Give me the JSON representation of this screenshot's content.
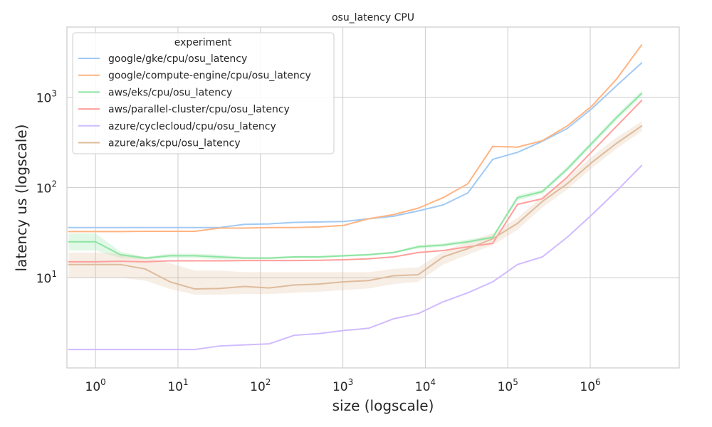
{
  "chart_data": {
    "type": "line",
    "title": "osu_latency CPU",
    "xlabel": "size (logscale)",
    "ylabel": "latency us (logscale)",
    "xscale": "log",
    "yscale": "log",
    "xlim": [
      0.45,
      12000000
    ],
    "ylim": [
      1.0,
      6000
    ],
    "grid": true,
    "x_ticks": [
      {
        "base": "10",
        "exp": "0",
        "value": 1
      },
      {
        "base": "10",
        "exp": "1",
        "value": 10
      },
      {
        "base": "10",
        "exp": "2",
        "value": 100
      },
      {
        "base": "10",
        "exp": "3",
        "value": 1000
      },
      {
        "base": "10",
        "exp": "4",
        "value": 10000
      },
      {
        "base": "10",
        "exp": "5",
        "value": 100000
      },
      {
        "base": "10",
        "exp": "6",
        "value": 1000000
      }
    ],
    "y_ticks": [
      {
        "base": "10",
        "exp": "1",
        "value": 10
      },
      {
        "base": "10",
        "exp": "2",
        "value": 100
      },
      {
        "base": "10",
        "exp": "3",
        "value": 1000
      }
    ],
    "legend": {
      "title": "experiment",
      "position": "top-left"
    },
    "x": [
      0,
      1,
      2,
      4,
      8,
      16,
      32,
      64,
      128,
      256,
      512,
      1024,
      2048,
      4096,
      8192,
      16384,
      32768,
      65536,
      131072,
      262144,
      524288,
      1048576,
      2097152,
      4194304
    ],
    "series": [
      {
        "name": "google/gke/cpu/osu_latency",
        "color": "#a1c9f4",
        "values": [
          36,
          36,
          36,
          36,
          36,
          36,
          36,
          39,
          39.5,
          41,
          41.5,
          42,
          45,
          48,
          55,
          64,
          87,
          205,
          245,
          325,
          450,
          750,
          1350,
          2400
        ]
      },
      {
        "name": "google/compute-engine/cpu/osu_latency",
        "color": "#ffb482",
        "values": [
          32.5,
          32.5,
          32.5,
          32.7,
          32.7,
          32.7,
          35.5,
          35.5,
          36,
          36,
          36.5,
          38,
          45,
          50,
          59,
          77,
          110,
          285,
          280,
          330,
          480,
          800,
          1600,
          3800
        ]
      },
      {
        "name": "aws/eks/cpu/osu_latency",
        "color": "#8de5a1",
        "values": [
          25,
          25,
          18,
          16.5,
          17.5,
          17.5,
          17,
          16.5,
          16.5,
          17,
          17,
          17.5,
          18,
          19,
          22,
          23,
          25,
          28,
          77,
          90,
          160,
          310,
          600,
          1100
        ],
        "band_low": [
          20,
          20,
          16.5,
          16,
          16.5,
          16.5,
          16,
          16,
          16,
          16.5,
          16.5,
          17,
          17.5,
          18.5,
          21,
          22,
          24,
          27,
          72,
          85,
          150,
          290,
          560,
          1020
        ],
        "band_high": [
          31,
          31,
          19.5,
          17,
          18.5,
          18.5,
          18,
          17,
          17,
          17.5,
          17.5,
          18,
          18.5,
          19.5,
          23,
          24,
          26.5,
          29,
          82,
          95,
          170,
          330,
          640,
          1180
        ]
      },
      {
        "name": "aws/parallel-cluster/cpu/osu_latency",
        "color": "#ff9f9b",
        "values": [
          15,
          15,
          15.2,
          15,
          15.4,
          15.4,
          15.4,
          15.5,
          15.5,
          15.5,
          15.6,
          15.8,
          16.2,
          17,
          19,
          20,
          22,
          24,
          65,
          75,
          130,
          250,
          480,
          920
        ]
      },
      {
        "name": "azure/cyclecloud/cpu/osu_latency",
        "color": "#d0bbff",
        "values": [
          1.6,
          1.6,
          1.6,
          1.6,
          1.6,
          1.6,
          1.75,
          1.8,
          1.85,
          2.3,
          2.4,
          2.6,
          2.75,
          3.5,
          4,
          5.4,
          6.8,
          9,
          14,
          17,
          28,
          50,
          92,
          175
        ]
      },
      {
        "name": "azure/aks/cpu/osu_latency",
        "color": "#debb9b",
        "values": [
          14,
          14,
          14,
          12.5,
          9,
          7.5,
          7.6,
          8,
          7.7,
          8.3,
          8.5,
          9,
          9.3,
          10.5,
          10.8,
          17,
          21,
          27,
          40,
          70,
          110,
          190,
          310,
          480
        ],
        "band_low": [
          10,
          10,
          10,
          9.3,
          7.5,
          6.5,
          6.5,
          6.6,
          6.6,
          6.8,
          7,
          7.3,
          7.6,
          8.5,
          9,
          14,
          18,
          23,
          34,
          60,
          95,
          165,
          270,
          420
        ],
        "band_high": [
          19,
          19,
          18.5,
          17,
          14.5,
          12,
          12,
          11.5,
          11.5,
          11.5,
          11.5,
          11.5,
          11.5,
          12.5,
          13,
          19.5,
          25,
          31,
          46,
          80,
          128,
          220,
          360,
          540
        ]
      }
    ]
  }
}
